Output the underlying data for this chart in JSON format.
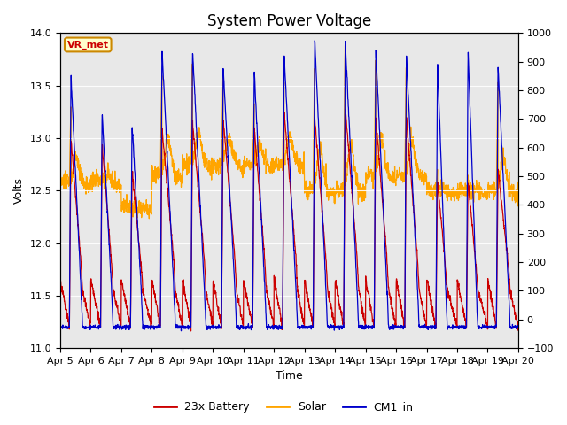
{
  "title": "System Power Voltage",
  "xlabel": "Time",
  "ylabel": "Volts",
  "ylim_left": [
    11.0,
    14.0
  ],
  "ylim_right": [
    -100,
    1000
  ],
  "yticks_left": [
    11.0,
    11.5,
    12.0,
    12.5,
    13.0,
    13.5,
    14.0
  ],
  "yticks_right": [
    -100,
    0,
    100,
    200,
    300,
    400,
    500,
    600,
    700,
    800,
    900,
    1000
  ],
  "xtick_labels": [
    "Apr 5",
    "Apr 6",
    "Apr 7",
    "Apr 8",
    "Apr 9",
    "Apr 10",
    "Apr 11",
    "Apr 12",
    "Apr 13",
    "Apr 14",
    "Apr 15",
    "Apr 16",
    "Apr 17",
    "Apr 18",
    "Apr 19",
    "Apr 20"
  ],
  "background_color": "#ffffff",
  "plot_bg_color": "#e8e8e8",
  "line_red_color": "#cc0000",
  "line_orange_color": "#ffa500",
  "line_blue_color": "#0000cc",
  "legend_labels": [
    "23x Battery",
    "Solar",
    "CM1_in"
  ],
  "annotation_text": "VR_met",
  "annotation_bbox_facecolor": "#ffffcc",
  "annotation_bbox_edgecolor": "#cc8800",
  "title_fontsize": 12,
  "axis_fontsize": 9,
  "tick_fontsize": 8,
  "legend_fontsize": 9,
  "n_days": 15,
  "pts_per_day": 144
}
